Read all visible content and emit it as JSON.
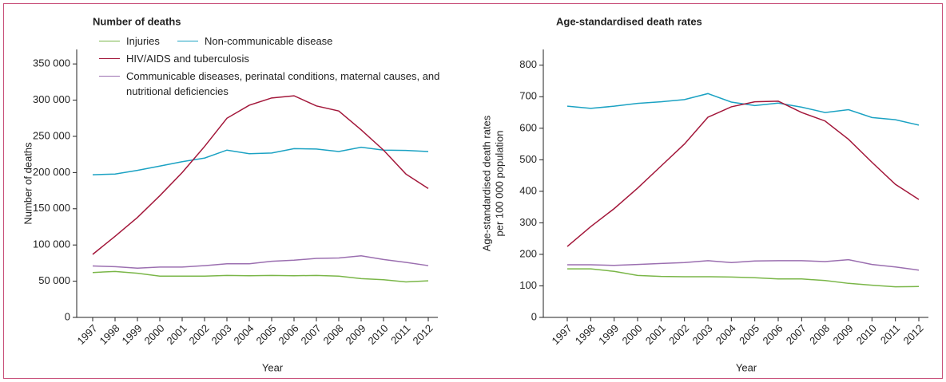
{
  "chart_data": [
    {
      "type": "line",
      "title": "Number of deaths",
      "x_label": "Year",
      "y_label": [
        "Number of deaths"
      ],
      "categories": [
        "1997",
        "1998",
        "1999",
        "2000",
        "2001",
        "2002",
        "2003",
        "2004",
        "2005",
        "2006",
        "2007",
        "2008",
        "2009",
        "2010",
        "2011",
        "2012"
      ],
      "ylim": [
        0,
        370000
      ],
      "yticks": [
        0,
        {
          "value": 50000,
          "label": "50 000"
        },
        {
          "value": 100000,
          "label": "100 000"
        },
        {
          "value": 150000,
          "label": "150 000"
        },
        {
          "value": 200000,
          "label": "200 000"
        },
        {
          "value": 250000,
          "label": "250 000"
        },
        {
          "value": 300000,
          "label": "300 000"
        },
        {
          "value": 350000,
          "label": "350 000"
        }
      ],
      "series": [
        {
          "name": "Injuries",
          "color": "#7ab648",
          "values": [
            62000,
            63500,
            61000,
            57000,
            57000,
            57000,
            58000,
            57500,
            58000,
            57500,
            58000,
            57000,
            53500,
            52000,
            49000,
            50500
          ]
        },
        {
          "name": "Non-communicable disease",
          "color": "#1ba2c3",
          "values": [
            197000,
            198000,
            203000,
            209000,
            215000,
            220000,
            231000,
            226000,
            227000,
            233000,
            232500,
            229000,
            235000,
            231000,
            230500,
            229000
          ]
        },
        {
          "name": "HIV/AIDS and tuberculosis",
          "color": "#a3173a",
          "values": [
            87000,
            112000,
            138000,
            168000,
            200000,
            236000,
            275000,
            293000,
            303000,
            306000,
            292000,
            285000,
            259000,
            231000,
            198000,
            178000
          ]
        },
        {
          "name": "Communicable diseases, perinatal conditions, maternal causes, and nutritional deficiencies",
          "color": "#9b6fb0",
          "values": [
            71000,
            70000,
            68000,
            69500,
            69500,
            71500,
            74000,
            74000,
            77500,
            79000,
            81500,
            82000,
            85000,
            80000,
            76000,
            71500
          ]
        }
      ]
    },
    {
      "type": "line",
      "title": "Age-standardised death rates",
      "x_label": "Year",
      "y_label": [
        "Age-standardised death rates",
        "per 100 000 population"
      ],
      "categories": [
        "1997",
        "1998",
        "1999",
        "2000",
        "2001",
        "2002",
        "2003",
        "2004",
        "2005",
        "2006",
        "2007",
        "2008",
        "2009",
        "2010",
        "2011",
        "2012"
      ],
      "ylim": [
        0,
        850
      ],
      "yticks": [
        0,
        100,
        200,
        300,
        400,
        500,
        600,
        700,
        800
      ],
      "series": [
        {
          "color": "#7ab648",
          "values": [
            154,
            154,
            146,
            133,
            130,
            129,
            129,
            128,
            126,
            122,
            122,
            117,
            108,
            102,
            97,
            98
          ]
        },
        {
          "color": "#1ba2c3",
          "values": [
            670,
            663,
            670,
            679,
            684,
            691,
            710,
            683,
            672,
            680,
            667,
            650,
            659,
            634,
            627,
            610
          ]
        },
        {
          "color": "#a3173a",
          "values": [
            225,
            288,
            345,
            410,
            480,
            550,
            635,
            668,
            684,
            686,
            650,
            623,
            565,
            492,
            422,
            374
          ]
        },
        {
          "color": "#9b6fb0",
          "values": [
            167,
            167,
            165,
            168,
            171,
            174,
            180,
            174,
            179,
            180,
            180,
            177,
            183,
            168,
            160,
            150
          ]
        }
      ]
    }
  ]
}
